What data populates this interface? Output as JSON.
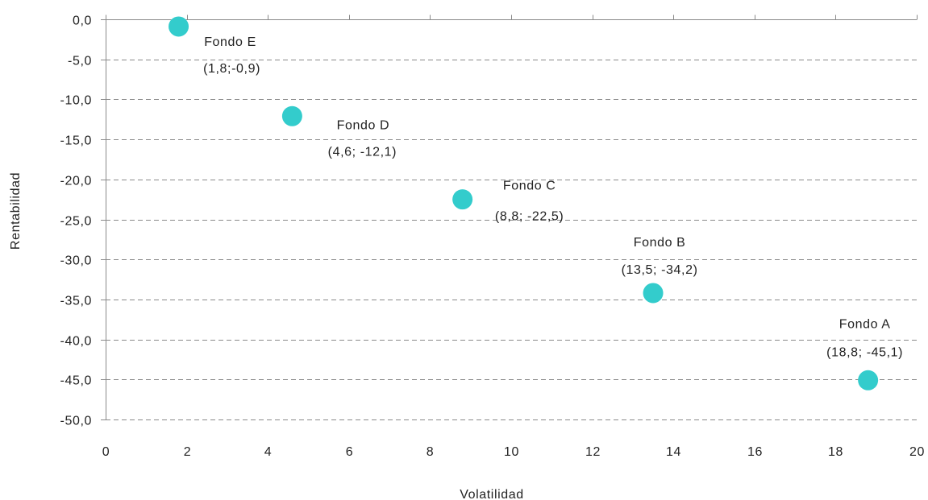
{
  "chart_data": {
    "type": "scatter",
    "title": "",
    "xlabel": "Volatilidad",
    "ylabel": "Rentabilidad",
    "xlim": [
      0,
      20
    ],
    "ylim": [
      -50,
      0
    ],
    "x_ticks": [
      0,
      2,
      4,
      6,
      8,
      10,
      12,
      14,
      16,
      18,
      20
    ],
    "x_tick_labels": [
      "0",
      "2",
      "4",
      "6",
      "8",
      "10",
      "12",
      "14",
      "16",
      "18",
      "20"
    ],
    "y_ticks": [
      0,
      -5,
      -10,
      -15,
      -20,
      -25,
      -30,
      -35,
      -40,
      -45,
      -50
    ],
    "y_tick_labels": [
      "0,0",
      "-5,0",
      "-10,0",
      "-15,0",
      "-20,0",
      "-25,0",
      "-30,0",
      "-35,0",
      "-40,0",
      "-45,0",
      "-50,0"
    ],
    "grid": "horizontal dashed",
    "legend": "none",
    "marker_color": "#33cccc",
    "points": [
      {
        "name": "Fondo E",
        "coord_label": "(1,8;-0,9)",
        "x": 1.8,
        "y": -0.9
      },
      {
        "name": "Fondo D",
        "coord_label": "(4,6; -12,1)",
        "x": 4.6,
        "y": -12.1
      },
      {
        "name": "Fondo C",
        "coord_label": "(8,8; -22,5)",
        "x": 8.8,
        "y": -22.5
      },
      {
        "name": "Fondo B",
        "coord_label": "(13,5; -34,2)",
        "x": 13.5,
        "y": -34.2
      },
      {
        "name": "Fondo A",
        "coord_label": "(18,8; -45,1)",
        "x": 18.8,
        "y": -45.1
      }
    ]
  }
}
